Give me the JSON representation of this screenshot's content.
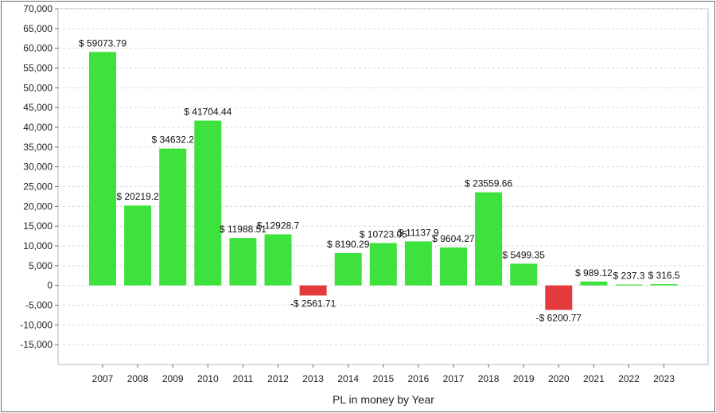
{
  "chart_data": {
    "type": "bar",
    "title": "",
    "xlabel": "PL in money by Year",
    "ylabel": "",
    "ylim": [
      -20000,
      70000
    ],
    "ytick_step": 5000,
    "yticks": [
      "70,000",
      "65,000",
      "60,000",
      "55,000",
      "50,000",
      "45,000",
      "40,000",
      "35,000",
      "30,000",
      "25,000",
      "20,000",
      "15,000",
      "10,000",
      "5,000",
      "0",
      "-5,000",
      "-10,000",
      "-15,000"
    ],
    "grid": true,
    "legend": "none",
    "categories": [
      "2007",
      "2008",
      "2009",
      "2010",
      "2011",
      "2012",
      "2013",
      "2014",
      "2015",
      "2016",
      "2017",
      "2018",
      "2019",
      "2020",
      "2021",
      "2022",
      "2023"
    ],
    "values": [
      59073.79,
      20219.2,
      34632.2,
      41704.44,
      11988.51,
      12928.7,
      -2561.71,
      8190.29,
      10723.05,
      11137.9,
      9604.27,
      23559.66,
      5499.35,
      -6200.77,
      989.12,
      237.3,
      316.5
    ],
    "data_labels": [
      "$ 59073.79",
      "$ 20219.2",
      "$ 34632.2",
      "$ 41704.44",
      "$ 11988.51",
      "$ 12928.7",
      "-$ 2561.71",
      "$ 8190.29",
      "$ 10723.05",
      "$ 11137.9",
      "$ 9604.27",
      "$ 23559.66",
      "$ 5499.35",
      "-$ 6200.77",
      "$ 989.12",
      "$ 237.3",
      "$ 316.5"
    ],
    "colors": {
      "positive": "#3de23d",
      "negative": "#e33b3b"
    }
  }
}
